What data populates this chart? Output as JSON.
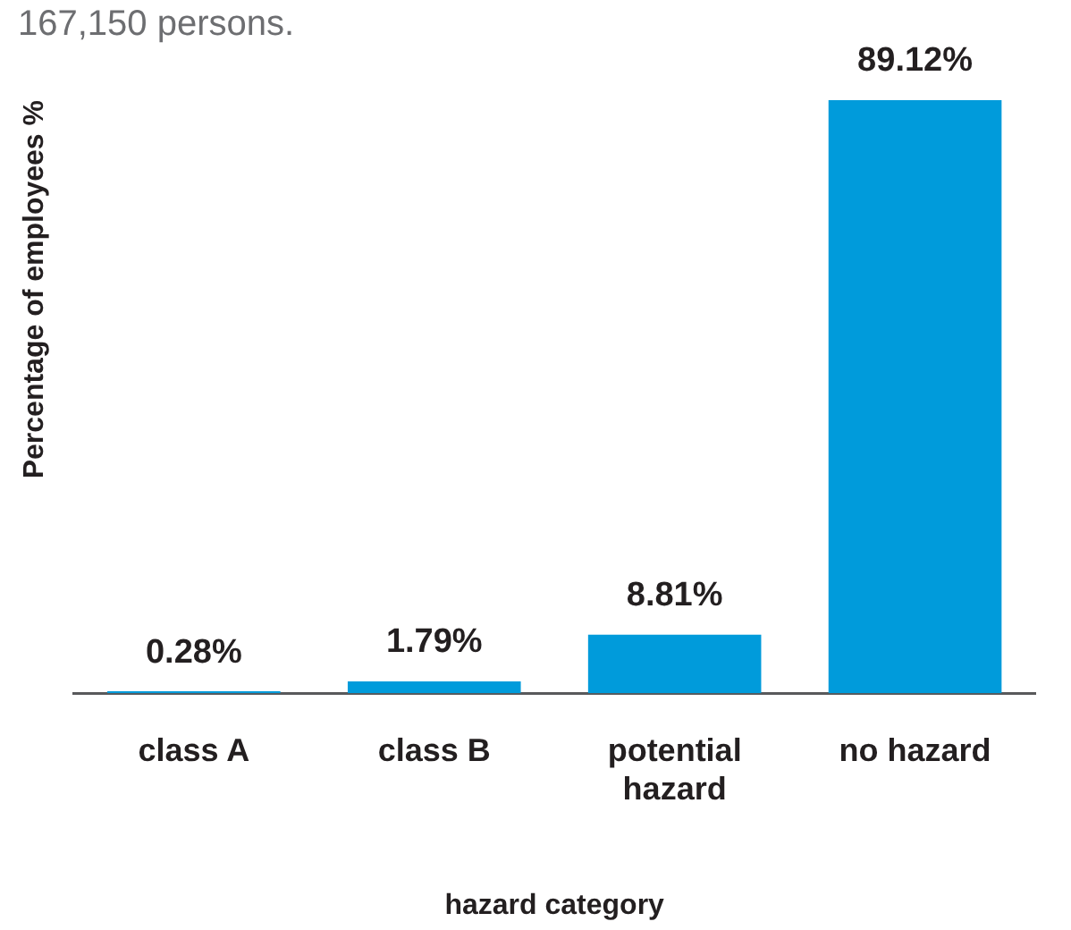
{
  "chart_data": {
    "type": "bar",
    "subtitle": "167,150 persons.",
    "xlabel": "hazard category",
    "ylabel": "Percentage of employees %",
    "categories": [
      "class A",
      "class B",
      "potential hazard",
      "no hazard"
    ],
    "values": [
      0.28,
      1.79,
      8.81,
      89.12
    ],
    "color": "#009bdb",
    "value_labels": [
      "0.28%",
      "1.79%",
      "8.81%",
      "89.12%"
    ],
    "tick_labels": "x"
  }
}
